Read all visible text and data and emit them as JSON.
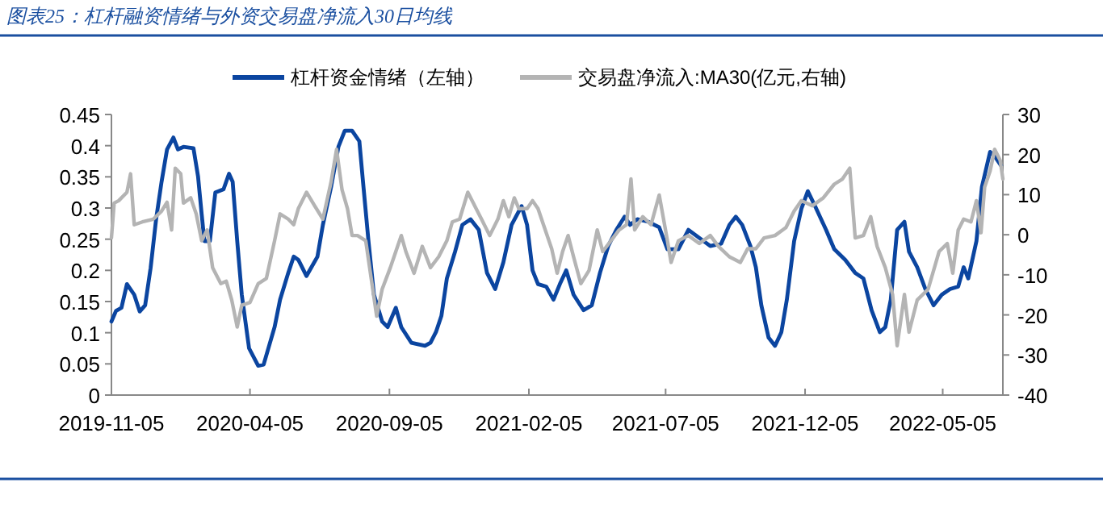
{
  "chart_data": {
    "type": "line",
    "title": "图表25：杠杆融资情绪与外资交易盘净流入30日均线",
    "xlim": [
      "2019-11-05",
      "2022-07-10"
    ],
    "xticks": [
      "2019-11-05",
      "2020-04-05",
      "2020-09-05",
      "2021-02-05",
      "2021-07-05",
      "2021-12-05",
      "2022-05-05"
    ],
    "ylim": [
      0,
      0.45
    ],
    "yticks": [
      0,
      0.05,
      0.1,
      0.15,
      0.2,
      0.25,
      0.3,
      0.35,
      0.4,
      0.45
    ],
    "y2lim": [
      -40,
      30
    ],
    "y2ticks": [
      -40,
      -30,
      -20,
      -10,
      0,
      10,
      20,
      30
    ],
    "legend": "top",
    "grid": false,
    "marker": "none",
    "line_style": "solid",
    "series": [
      {
        "name": "杠杆资金情绪（左轴）",
        "color": "#0b45a0",
        "x": [
          "2019-11-05",
          "2019-11-10",
          "2019-11-16",
          "2019-11-22",
          "2019-11-30",
          "2019-12-06",
          "2019-12-12",
          "2019-12-18",
          "2019-12-24",
          "2019-12-30",
          "2020-01-05",
          "2020-01-12",
          "2020-01-17",
          "2020-01-23",
          "2020-02-03",
          "2020-02-08",
          "2020-02-12",
          "2020-02-15",
          "2020-02-21",
          "2020-02-27",
          "2020-03-07",
          "2020-03-13",
          "2020-03-17",
          "2020-03-22",
          "2020-03-27",
          "2020-04-04",
          "2020-04-14",
          "2020-04-20",
          "2020-04-26",
          "2020-05-02",
          "2020-05-08",
          "2020-05-17",
          "2020-05-23",
          "2020-05-28",
          "2020-06-06",
          "2020-06-18",
          "2020-06-24",
          "2020-07-03",
          "2020-07-11",
          "2020-07-18",
          "2020-07-26",
          "2020-08-03",
          "2020-08-07",
          "2020-08-13",
          "2020-08-19",
          "2020-08-28",
          "2020-09-03",
          "2020-09-12",
          "2020-09-18",
          "2020-09-29",
          "2020-10-08",
          "2020-10-14",
          "2020-10-20",
          "2020-10-26",
          "2020-11-01",
          "2020-11-07",
          "2020-11-16",
          "2020-11-24",
          "2020-12-03",
          "2020-12-12",
          "2020-12-21",
          "2020-12-30",
          "2021-01-08",
          "2021-01-17",
          "2021-01-28",
          "2021-02-03",
          "2021-02-09",
          "2021-02-15",
          "2021-02-24",
          "2021-03-04",
          "2021-03-11",
          "2021-03-18",
          "2021-03-26",
          "2021-04-06",
          "2021-04-15",
          "2021-04-24",
          "2021-05-03",
          "2021-05-12",
          "2021-05-21",
          "2021-05-27",
          "2021-06-04",
          "2021-06-16",
          "2021-06-28",
          "2021-07-07",
          "2021-07-19",
          "2021-07-30",
          "2021-08-11",
          "2021-08-23",
          "2021-09-04",
          "2021-09-13",
          "2021-09-20",
          "2021-09-27",
          "2021-10-06",
          "2021-10-12",
          "2021-10-18",
          "2021-10-26",
          "2021-11-02",
          "2021-11-09",
          "2021-11-15",
          "2021-11-23",
          "2021-12-01",
          "2021-12-08",
          "2021-12-16",
          "2021-12-28",
          "2022-01-06",
          "2022-01-18",
          "2022-01-29",
          "2022-02-07",
          "2022-02-16",
          "2022-02-25",
          "2022-03-03",
          "2022-03-09",
          "2022-03-16",
          "2022-03-24",
          "2022-03-29",
          "2022-04-07",
          "2022-04-16",
          "2022-04-25",
          "2022-05-04",
          "2022-05-13",
          "2022-05-22",
          "2022-05-28",
          "2022-06-02",
          "2022-06-11",
          "2022-06-17",
          "2022-06-26",
          "2022-07-02",
          "2022-07-08"
        ],
        "values": [
          0.118,
          0.135,
          0.14,
          0.178,
          0.161,
          0.134,
          0.144,
          0.204,
          0.282,
          0.342,
          0.394,
          0.413,
          0.394,
          0.398,
          0.396,
          0.351,
          0.29,
          0.247,
          0.247,
          0.325,
          0.33,
          0.355,
          0.342,
          0.247,
          0.161,
          0.075,
          0.047,
          0.049,
          0.079,
          0.109,
          0.153,
          0.196,
          0.222,
          0.217,
          0.191,
          0.222,
          0.273,
          0.334,
          0.398,
          0.424,
          0.424,
          0.407,
          0.342,
          0.247,
          0.161,
          0.118,
          0.109,
          0.14,
          0.109,
          0.084,
          0.081,
          0.079,
          0.084,
          0.101,
          0.127,
          0.187,
          0.23,
          0.273,
          0.282,
          0.265,
          0.196,
          0.17,
          0.213,
          0.273,
          0.303,
          0.273,
          0.2,
          0.178,
          0.174,
          0.153,
          0.178,
          0.2,
          0.161,
          0.136,
          0.144,
          0.196,
          0.239,
          0.265,
          0.286,
          0.273,
          0.282,
          0.278,
          0.269,
          0.234,
          0.234,
          0.265,
          0.252,
          0.239,
          0.243,
          0.273,
          0.286,
          0.273,
          0.239,
          0.205,
          0.144,
          0.092,
          0.079,
          0.101,
          0.153,
          0.247,
          0.299,
          0.327,
          0.303,
          0.265,
          0.234,
          0.217,
          0.196,
          0.187,
          0.136,
          0.101,
          0.109,
          0.153,
          0.265,
          0.278,
          0.23,
          0.205,
          0.17,
          0.144,
          0.161,
          0.17,
          0.174,
          0.205,
          0.187,
          0.247,
          0.334,
          0.39,
          0.381,
          0.368
        ]
      },
      {
        "name": "交易盘净流入:MA30(亿元,右轴)",
        "color": "#b4b4b4",
        "axis": "y2",
        "x": [
          "2019-11-05",
          "2019-11-08",
          "2019-11-13",
          "2019-11-22",
          "2019-11-26",
          "2019-11-30",
          "2019-12-09",
          "2019-12-21",
          "2019-12-30",
          "2020-01-05",
          "2020-01-10",
          "2020-01-14",
          "2020-01-20",
          "2020-01-23",
          "2020-01-31",
          "2020-02-06",
          "2020-02-12",
          "2020-02-18",
          "2020-02-24",
          "2020-03-04",
          "2020-03-10",
          "2020-03-16",
          "2020-03-22",
          "2020-03-27",
          "2020-04-05",
          "2020-04-14",
          "2020-04-23",
          "2020-05-02",
          "2020-05-08",
          "2020-05-17",
          "2020-05-23",
          "2020-05-28",
          "2020-06-06",
          "2020-06-15",
          "2020-06-24",
          "2020-07-03",
          "2020-07-09",
          "2020-07-15",
          "2020-07-21",
          "2020-07-26",
          "2020-08-01",
          "2020-08-10",
          "2020-08-16",
          "2020-08-22",
          "2020-08-28",
          "2020-09-06",
          "2020-09-12",
          "2020-09-18",
          "2020-09-23",
          "2020-10-02",
          "2020-10-11",
          "2020-10-20",
          "2020-10-29",
          "2020-11-07",
          "2020-11-13",
          "2020-11-21",
          "2020-11-30",
          "2020-12-06",
          "2020-12-15",
          "2020-12-24",
          "2021-01-02",
          "2021-01-08",
          "2021-01-14",
          "2021-01-20",
          "2021-01-25",
          "2021-02-03",
          "2021-02-09",
          "2021-02-15",
          "2021-02-21",
          "2021-03-02",
          "2021-03-08",
          "2021-03-14",
          "2021-03-20",
          "2021-03-26",
          "2021-04-03",
          "2021-04-12",
          "2021-04-21",
          "2021-04-27",
          "2021-05-06",
          "2021-05-15",
          "2021-05-23",
          "2021-05-28",
          "2021-06-01",
          "2021-06-10",
          "2021-06-19",
          "2021-06-28",
          "2021-07-07",
          "2021-07-11",
          "2021-07-19",
          "2021-07-30",
          "2021-08-11",
          "2021-08-23",
          "2021-09-01",
          "2021-09-13",
          "2021-09-25",
          "2021-10-03",
          "2021-10-12",
          "2021-10-21",
          "2021-11-02",
          "2021-11-14",
          "2021-11-23",
          "2021-12-01",
          "2021-12-13",
          "2021-12-25",
          "2022-01-06",
          "2022-01-15",
          "2022-01-23",
          "2022-01-29",
          "2022-02-07",
          "2022-02-15",
          "2022-02-22",
          "2022-03-03",
          "2022-03-11",
          "2022-03-16",
          "2022-03-24",
          "2022-03-29",
          "2022-04-07",
          "2022-04-19",
          "2022-05-01",
          "2022-05-10",
          "2022-05-16",
          "2022-05-22",
          "2022-05-28",
          "2022-06-05",
          "2022-06-11",
          "2022-06-16",
          "2022-06-20",
          "2022-06-26",
          "2022-07-01",
          "2022-07-07",
          "2022-07-10"
        ],
        "values": [
          -0.8,
          7.9,
          8.5,
          10.6,
          15.2,
          2.5,
          3.2,
          3.9,
          5.9,
          8.1,
          1.2,
          16.6,
          15.2,
          7.9,
          9.2,
          5.2,
          -1.5,
          1.2,
          -8.2,
          -12.2,
          -11.6,
          -16.3,
          -23,
          -17.6,
          -16.9,
          -12.2,
          -10.9,
          -1.5,
          5.2,
          3.9,
          2.5,
          6.5,
          10.6,
          7.2,
          3.9,
          13.2,
          21.3,
          11.2,
          6.5,
          -0.2,
          -0.2,
          -1.5,
          -10.9,
          -20.3,
          -13.6,
          -8.2,
          -4.2,
          -0.2,
          -4.2,
          -9.6,
          -2.9,
          -8.2,
          -5.5,
          -1.5,
          3.2,
          3.9,
          10.6,
          7.9,
          3.9,
          -0.2,
          3.9,
          8.5,
          4.5,
          9.2,
          6.5,
          6.5,
          8.5,
          6.5,
          2.5,
          -3.5,
          -9.6,
          -4.2,
          -0.2,
          -5.5,
          -12.2,
          -8.9,
          1.2,
          -4.2,
          -1.5,
          1.2,
          2.5,
          13.9,
          1.2,
          4.5,
          2.5,
          9.9,
          -1.5,
          -6.9,
          -1.5,
          -0.2,
          -2.2,
          -0.2,
          -2.9,
          -5.5,
          -6.9,
          -3.5,
          -3.5,
          -0.8,
          -0.2,
          1.8,
          5.9,
          8.5,
          7.2,
          9.2,
          12.6,
          13.9,
          16.6,
          -0.8,
          -0.2,
          4.5,
          -2.9,
          -8.2,
          -14.9,
          -27.7,
          -14.9,
          -24.3,
          -16.3,
          -13.6,
          -4.2,
          -2.2,
          -9.6,
          1.2,
          3.9,
          3.2,
          8.5,
          0.5,
          11.9,
          15.9,
          21.3,
          18.6,
          13.9
        ]
      }
    ]
  }
}
